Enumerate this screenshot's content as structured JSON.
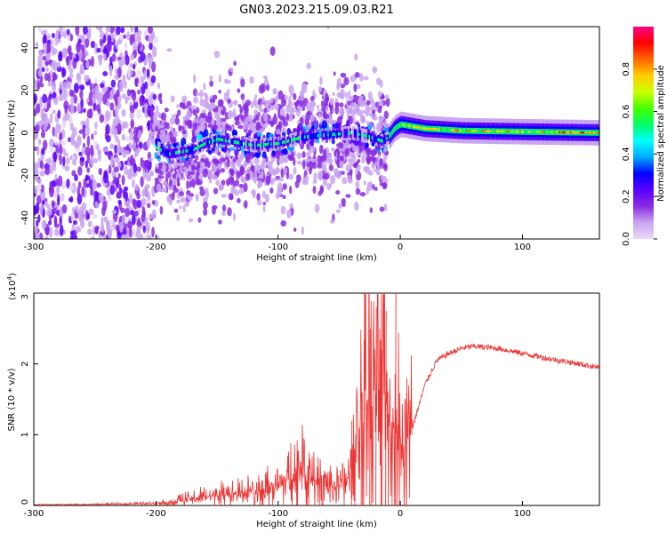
{
  "title": "GN03.2023.215.09.03.R21",
  "chart_data": [
    {
      "type": "heatmap",
      "title": "",
      "xlabel": "Height of straight line (km)",
      "ylabel": "Frequency (Hz)",
      "xlim": [
        -300,
        163
      ],
      "ylim": [
        -50,
        50
      ],
      "xticks": [
        "-300",
        "-200",
        "-100",
        "0",
        "100"
      ],
      "yticks": [
        "-40",
        "-20",
        "0",
        "20",
        "40"
      ],
      "colorbar": {
        "label": "Normalized spectral amplitude",
        "range": [
          0,
          1
        ],
        "ticks": [
          "0.0",
          "0.2",
          "0.4",
          "0.6",
          "0.8"
        ],
        "colors": [
          "#e8d8f8",
          "#c9a6f0",
          "#8a2be2",
          "#5a00ff",
          "#0000ff",
          "#00aaff",
          "#00ffff",
          "#00ff66",
          "#44ff00",
          "#ccff00",
          "#ffcc00",
          "#ff6600",
          "#ff0000",
          "#ff0088"
        ]
      },
      "ridge": {
        "x": [
          -200,
          -190,
          -180,
          -170,
          -160,
          -150,
          -140,
          -120,
          -100,
          -80,
          -60,
          -40,
          -25,
          -15,
          -10,
          -5,
          0,
          20,
          50,
          100,
          163
        ],
        "y": [
          -7,
          -10,
          -9,
          -8,
          -5,
          -3,
          -4,
          -6,
          -5,
          -2,
          -1,
          0,
          -2,
          -4,
          -2,
          2,
          4,
          2,
          1,
          0.5,
          0
        ]
      }
    },
    {
      "type": "line",
      "title": "",
      "xlabel": "Height of straight line (km)",
      "ylabel": "SNR (10 * v/v)",
      "multiplier": "(x10",
      "exponent": "4",
      "multiplier_close": ")",
      "xlim": [
        -300,
        163
      ],
      "ylim": [
        0,
        30000
      ],
      "xticks": [
        "-300",
        "-200",
        "-100",
        "0",
        "100"
      ],
      "yticks": [
        "0",
        "1",
        "2",
        "3"
      ],
      "color": "#ee3333",
      "series": [
        {
          "x": [
            -300,
            -250,
            -200,
            -180,
            -160,
            -140,
            -120,
            -100,
            -90,
            -80,
            -70,
            -60,
            -50,
            -40,
            -35,
            -30,
            -25,
            -20,
            -15,
            -10,
            -5,
            0,
            5,
            10,
            20,
            30,
            40,
            50,
            60,
            80,
            100,
            120,
            140,
            163
          ],
          "y": [
            100,
            150,
            300,
            700,
            1200,
            1500,
            2000,
            2600,
            4000,
            5500,
            3500,
            3000,
            2500,
            4500,
            9000,
            14000,
            16000,
            13000,
            17000,
            12000,
            11000,
            9000,
            8000,
            11000,
            17000,
            20500,
            21500,
            22200,
            22500,
            22200,
            21500,
            20800,
            20200,
            19500
          ],
          "spikes": [
            {
              "x": -75,
              "y": 7500
            },
            {
              "x": -40,
              "y": 12000
            },
            {
              "x": -32,
              "y": 16000
            },
            {
              "x": -30,
              "y": 23500
            },
            {
              "x": -25,
              "y": 25000
            },
            {
              "x": -20,
              "y": 28000
            },
            {
              "x": -15,
              "y": 22000
            },
            {
              "x": -12,
              "y": 27500
            },
            {
              "x": -4,
              "y": 30000
            },
            {
              "x": 5,
              "y": 18000
            }
          ]
        }
      ]
    }
  ]
}
